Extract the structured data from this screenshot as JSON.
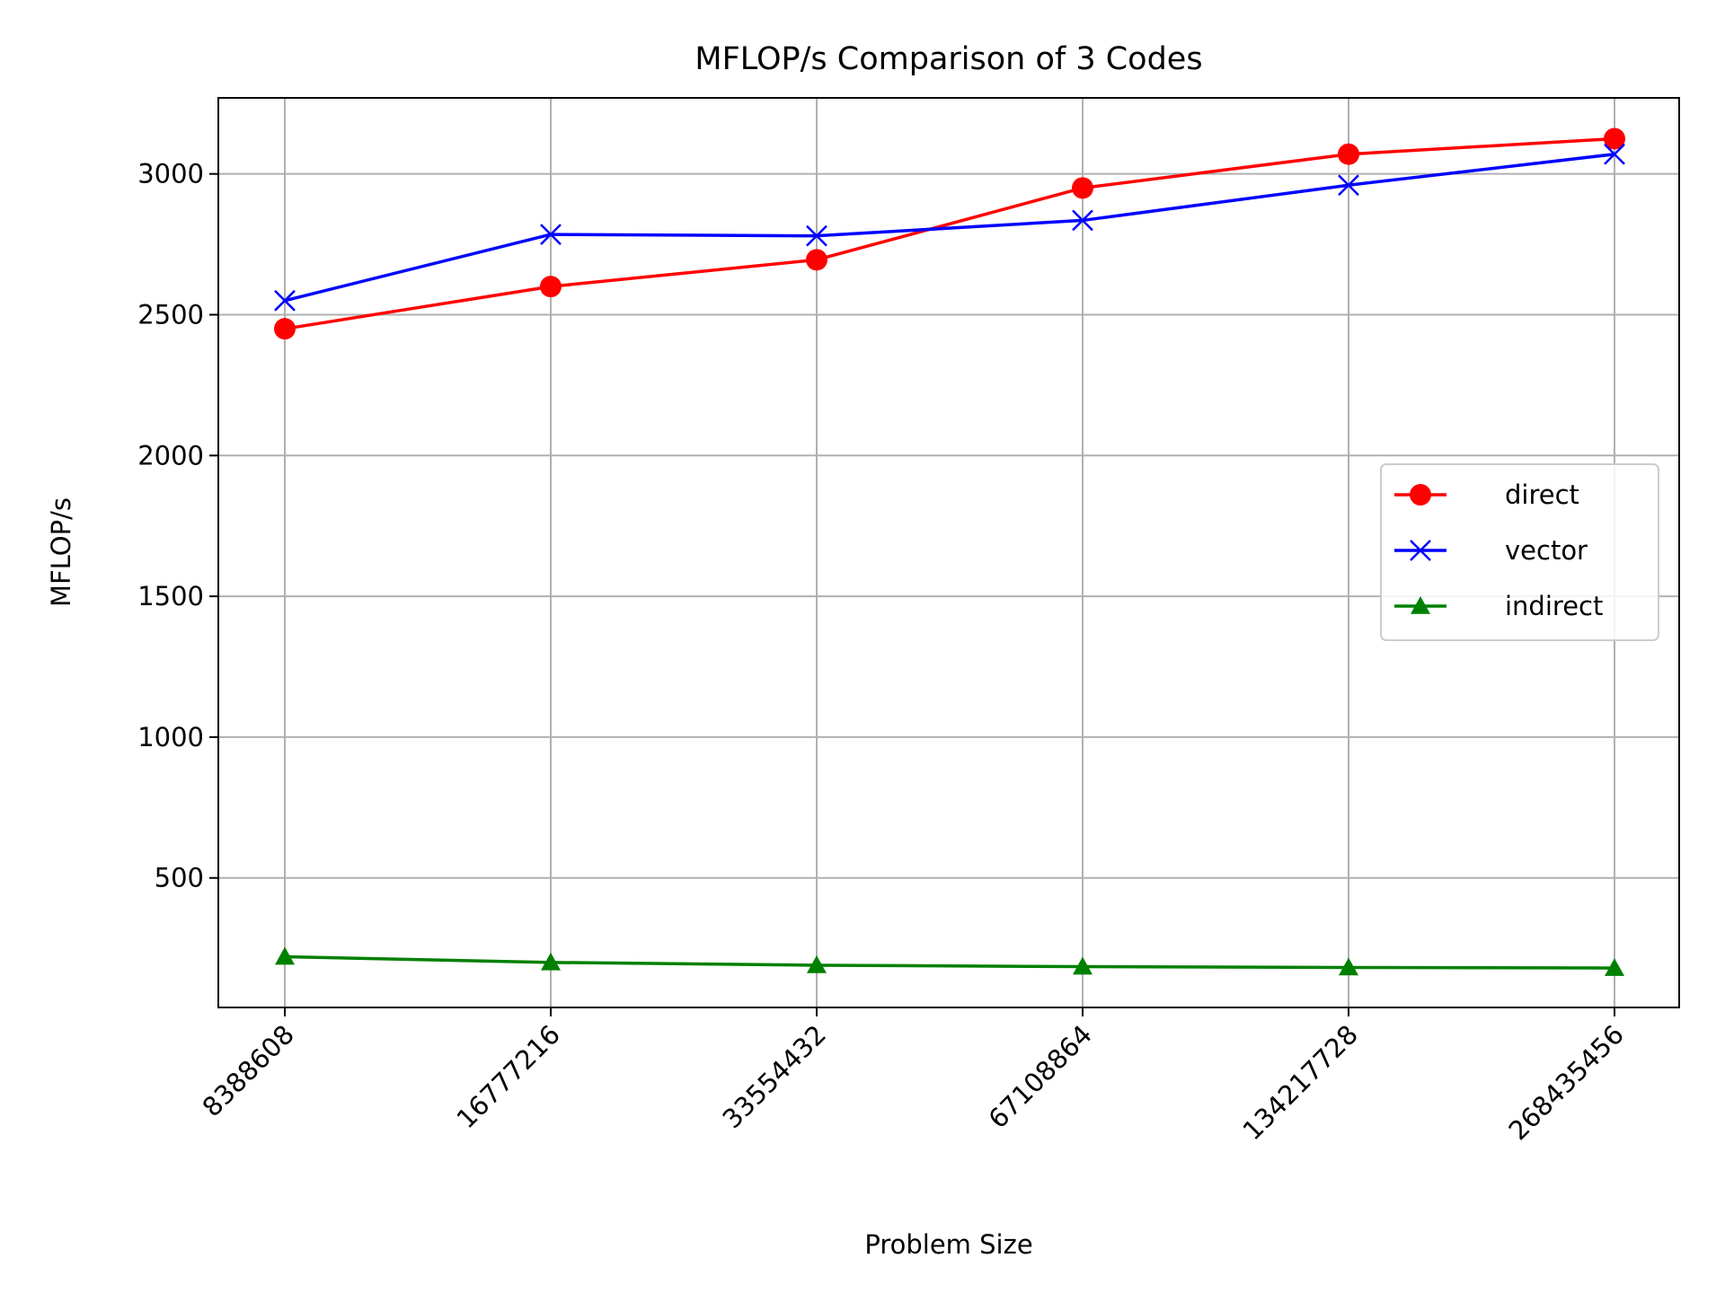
{
  "chart_data": {
    "type": "line",
    "title": "MFLOP/s Comparison of 3 Codes",
    "xlabel": "Problem Size",
    "ylabel": "MFLOP/s",
    "categories": [
      "8388608",
      "16777216",
      "33554432",
      "67108864",
      "134217728",
      "268435456"
    ],
    "y_ticks": [
      500,
      1000,
      1500,
      2000,
      2500,
      3000
    ],
    "ylim": [
      40,
      3270
    ],
    "grid": true,
    "legend_position": "center-right",
    "series": [
      {
        "name": "direct",
        "color": "#ff0000",
        "marker": "circle",
        "values": [
          2450,
          2600,
          2695,
          2950,
          3070,
          3125
        ]
      },
      {
        "name": "vector",
        "color": "#0000ff",
        "marker": "x",
        "values": [
          2550,
          2785,
          2780,
          2835,
          2960,
          3070
        ]
      },
      {
        "name": "indirect",
        "color": "#008000",
        "marker": "triangle",
        "values": [
          220,
          200,
          190,
          185,
          182,
          180
        ]
      }
    ]
  }
}
